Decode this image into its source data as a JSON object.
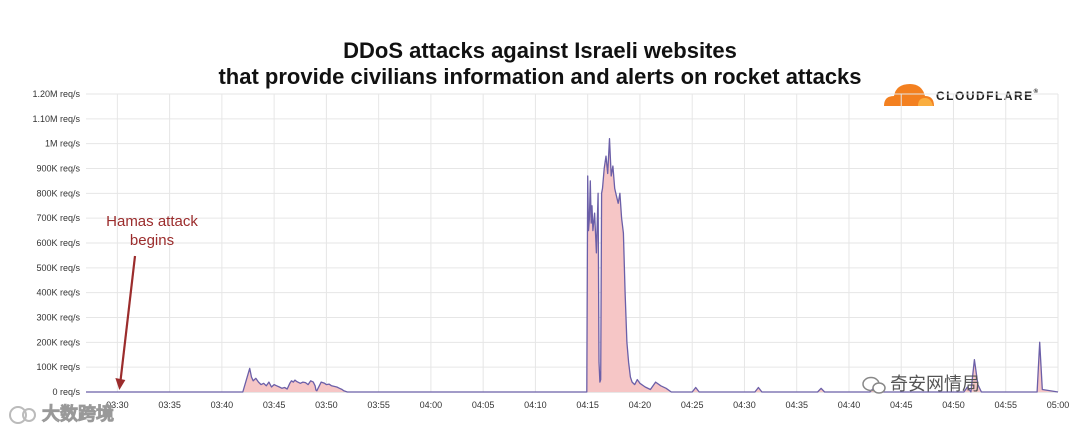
{
  "chart_data": {
    "type": "area",
    "title": "DDoS attacks against Israeli websites",
    "subtitle": "that provide civilians information and alerts on rocket attacks",
    "xlabel": "",
    "ylabel": "",
    "x_ticks": [
      "03:30",
      "03:35",
      "03:40",
      "03:45",
      "03:50",
      "03:55",
      "04:00",
      "04:05",
      "04:10",
      "04:15",
      "04:20",
      "04:25",
      "04:30",
      "04:35",
      "04:40",
      "04:45",
      "04:50",
      "04:55",
      "05:00"
    ],
    "y_ticks": [
      "0 req/s",
      "100K req/s",
      "200K req/s",
      "300K req/s",
      "400K req/s",
      "500K req/s",
      "600K req/s",
      "700K req/s",
      "800K req/s",
      "900K req/s",
      "1M req/s",
      "1.10M req/s",
      "1.20M req/s"
    ],
    "ylim": [
      0,
      1200000
    ],
    "xlim": [
      "03:27",
      "05:00"
    ],
    "grid": true,
    "colors": {
      "line": "#6b5fa8",
      "fill": "#f6c6c6",
      "grid": "#e6e6e6",
      "annotation": "#9b2c2c"
    },
    "series": [
      {
        "x": [
          "03:27",
          "03:42",
          "03:42:40",
          "03:42:50",
          "03:43",
          "03:43:15",
          "03:43:30",
          "03:43:45",
          "03:44",
          "03:44:15",
          "03:44:30",
          "03:44:45",
          "03:45",
          "03:45:15",
          "03:45:30",
          "03:45:45",
          "03:46",
          "03:46:15",
          "03:46:30",
          "03:46:40",
          "03:46:50",
          "03:47",
          "03:47:10",
          "03:47:30",
          "03:47:45",
          "03:48",
          "03:48:15",
          "03:48:30",
          "03:48:45",
          "03:48:55",
          "03:49",
          "03:49:05",
          "03:49:30",
          "03:49:50",
          "03:50",
          "03:50:15",
          "03:50:30",
          "03:51",
          "03:51:15",
          "03:51:30",
          "03:51:40",
          "03:52",
          "04:14:55",
          "04:15:00",
          "04:15:05",
          "04:15:10",
          "04:15:15",
          "04:15:20",
          "04:15:25",
          "04:15:30",
          "04:15:40",
          "04:15:50",
          "04:16:00",
          "04:16:05",
          "04:16:10",
          "04:16:15",
          "04:16:20",
          "04:16:25",
          "04:16:35",
          "04:16:45",
          "04:16:55",
          "04:17:05",
          "04:17:15",
          "04:17:25",
          "04:17:35",
          "04:17:45",
          "04:17:55",
          "04:18:05",
          "04:18:15",
          "04:18:25",
          "04:18:35",
          "04:18:45",
          "04:18:55",
          "04:19:05",
          "04:19:15",
          "04:19:30",
          "04:19:45",
          "04:20",
          "04:20:30",
          "04:21",
          "04:21:30",
          "04:22",
          "04:22:30",
          "04:23",
          "04:25",
          "04:25:20",
          "04:25:40",
          "04:31",
          "04:31:20",
          "04:31:40",
          "04:37",
          "04:37:20",
          "04:37:40",
          "04:42",
          "04:42:20",
          "04:42:40",
          "04:51",
          "04:51:20",
          "04:51:40",
          "04:52",
          "04:52:20",
          "04:52:40",
          "04:58",
          "04:58:15",
          "04:58:30",
          "05:00"
        ],
        "y": [
          0,
          0,
          95000,
          60000,
          45000,
          55000,
          40000,
          30000,
          35000,
          25000,
          40000,
          20000,
          30000,
          25000,
          20000,
          15000,
          18000,
          12000,
          35000,
          45000,
          40000,
          48000,
          42000,
          35000,
          40000,
          38000,
          30000,
          45000,
          40000,
          25000,
          8000,
          5000,
          40000,
          35000,
          30000,
          32000,
          25000,
          20000,
          15000,
          10000,
          5000,
          0,
          0,
          870000,
          650000,
          700000,
          850000,
          680000,
          750000,
          650000,
          720000,
          560000,
          800000,
          120000,
          40000,
          50000,
          800000,
          820000,
          900000,
          950000,
          880000,
          1020000,
          870000,
          910000,
          820000,
          790000,
          760000,
          800000,
          700000,
          640000,
          400000,
          200000,
          120000,
          60000,
          40000,
          30000,
          50000,
          35000,
          20000,
          10000,
          40000,
          25000,
          15000,
          0,
          0,
          18000,
          0,
          0,
          18000,
          0,
          0,
          15000,
          0,
          0,
          15000,
          0,
          0,
          20000,
          0,
          130000,
          30000,
          0,
          0,
          200000,
          10000,
          0
        ]
      }
    ],
    "annotation": {
      "text": [
        "Hamas attack",
        "begins"
      ],
      "x": "03:30",
      "y": 0
    }
  },
  "logo": {
    "text": "CLOUDFLARE",
    "reg": "®",
    "icon": "cloud-icon",
    "colors": [
      "#f38020",
      "#faae40"
    ]
  },
  "watermarks": {
    "right": "奇安网情局",
    "left": "大数跨境"
  }
}
